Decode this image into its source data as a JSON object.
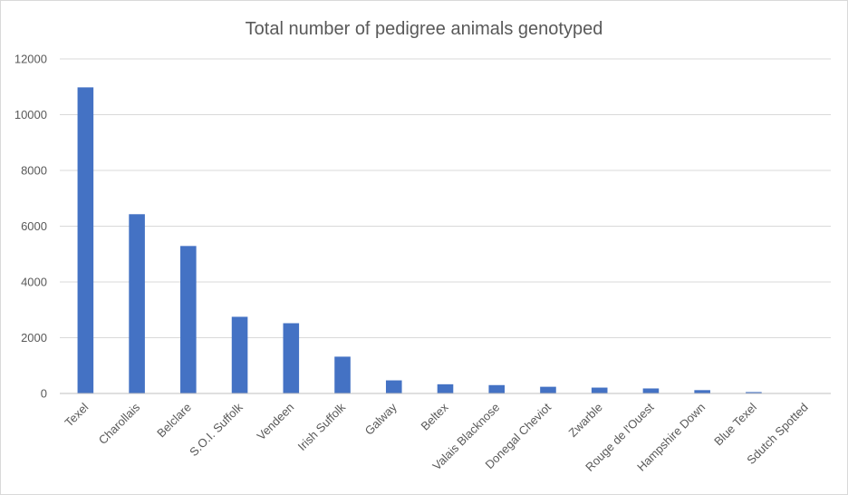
{
  "chart_data": {
    "type": "bar",
    "title": "Total number of pedigree animals genotyped",
    "xlabel": "",
    "ylabel": "",
    "ylim": [
      0,
      12000
    ],
    "yticks": [
      0,
      2000,
      4000,
      6000,
      8000,
      10000,
      12000
    ],
    "grid": true,
    "legend": "none",
    "bar_color": "#4472c4",
    "categories": [
      "Texel",
      "Charollais",
      "Belclare",
      "S.O.I. Suffolk",
      "Vendeen",
      "Irish Suffolk",
      "Galway",
      "Beltex",
      "Valais Blacknose",
      "Donegal Cheviot",
      "Zwarble",
      "Rouge de l'Ouest",
      "Hampshire Down",
      "Blue Texel",
      "Sdutch Spotted"
    ],
    "values": [
      10980,
      6430,
      5290,
      2750,
      2520,
      1320,
      470,
      330,
      300,
      240,
      210,
      180,
      120,
      50,
      10
    ]
  }
}
